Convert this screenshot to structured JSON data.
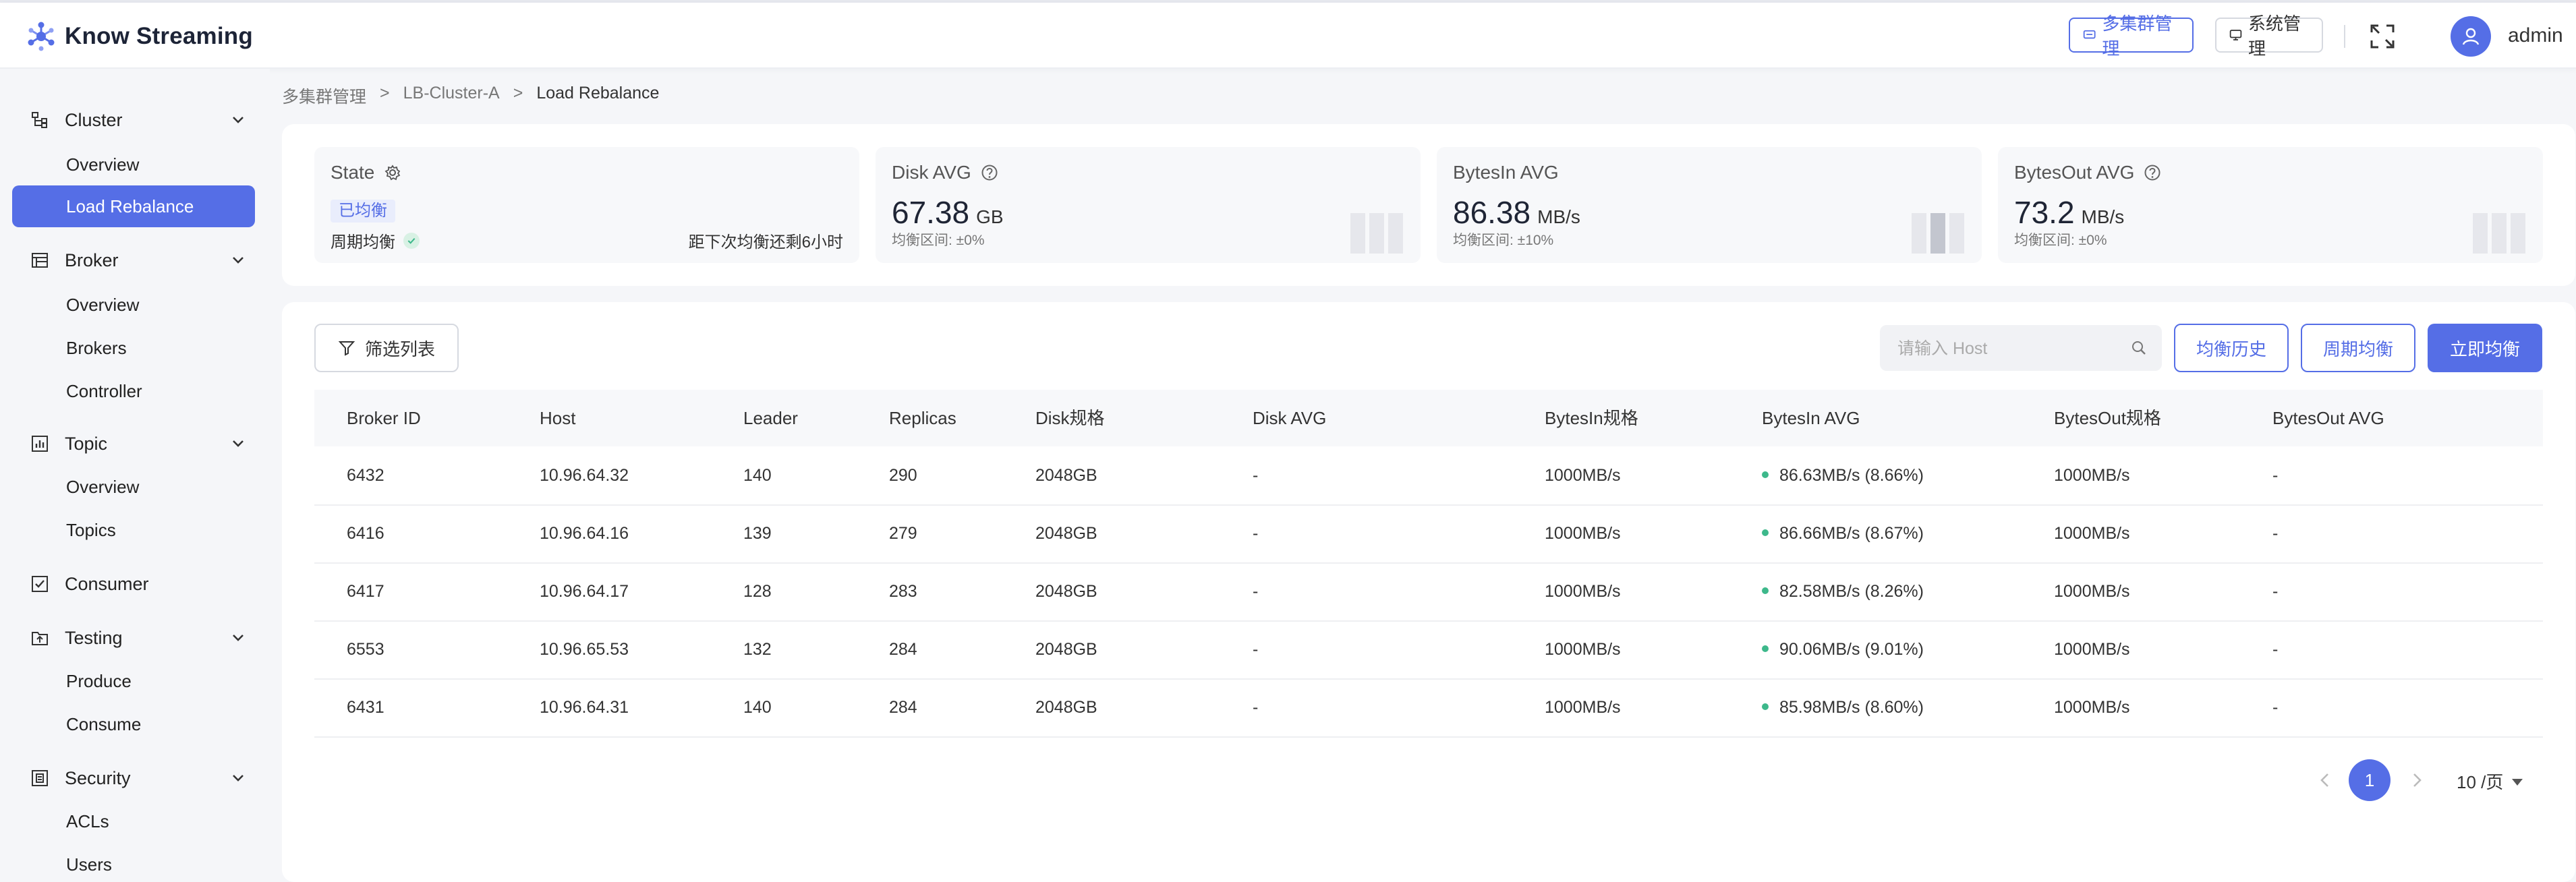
{
  "app": {
    "title": "Know Streaming",
    "user": "admin"
  },
  "header": {
    "multi_cluster": "多集群管理",
    "system": "系统管理"
  },
  "sidebar": {
    "groups": [
      {
        "label": "Cluster",
        "icon": "cluster-icon",
        "items": [
          "Overview",
          "Load Rebalance"
        ]
      },
      {
        "label": "Broker",
        "icon": "broker-icon",
        "items": [
          "Overview",
          "Brokers",
          "Controller"
        ]
      },
      {
        "label": "Topic",
        "icon": "topic-icon",
        "items": [
          "Overview",
          "Topics"
        ]
      },
      {
        "label": "Consumer",
        "icon": "consumer-icon",
        "items": []
      },
      {
        "label": "Testing",
        "icon": "testing-icon",
        "items": [
          "Produce",
          "Consume"
        ]
      },
      {
        "label": "Security",
        "icon": "security-icon",
        "items": [
          "ACLs",
          "Users"
        ]
      }
    ],
    "active": "Load Rebalance"
  },
  "breadcrumb": {
    "items": [
      "多集群管理",
      ">",
      "LB-Cluster-A",
      ">"
    ],
    "current": "Load Rebalance"
  },
  "stats": {
    "state": {
      "title": "State",
      "badge": "已均衡",
      "mode": "周期均衡",
      "next": "距下次均衡还剩6小时"
    },
    "disk": {
      "title": "Disk AVG",
      "value": "67.38",
      "unit": "GB",
      "range": "均衡区间: ±0%"
    },
    "bytes_in": {
      "title": "BytesIn AVG",
      "value": "86.38",
      "unit": "MB/s",
      "range": "均衡区间: ±10%"
    },
    "bytes_out": {
      "title": "BytesOut AVG",
      "value": "73.2",
      "unit": "MB/s",
      "range": "均衡区间: ±0%"
    }
  },
  "toolbar": {
    "filter": "筛选列表",
    "search_placeholder": "请输入 Host",
    "history": "均衡历史",
    "periodic": "周期均衡",
    "now": "立即均衡"
  },
  "table": {
    "columns": [
      "Broker ID",
      "Host",
      "Leader",
      "Replicas",
      "Disk规格",
      "Disk AVG",
      "BytesIn规格",
      "BytesIn AVG",
      "BytesOut规格",
      "BytesOut AVG"
    ],
    "rows": [
      [
        "6432",
        "10.96.64.32",
        "140",
        "290",
        "2048GB",
        "-",
        "1000MB/s",
        "86.63MB/s (8.66%)",
        "1000MB/s",
        "-"
      ],
      [
        "6416",
        "10.96.64.16",
        "139",
        "279",
        "2048GB",
        "-",
        "1000MB/s",
        "86.66MB/s (8.67%)",
        "1000MB/s",
        "-"
      ],
      [
        "6417",
        "10.96.64.17",
        "128",
        "283",
        "2048GB",
        "-",
        "1000MB/s",
        "82.58MB/s (8.26%)",
        "1000MB/s",
        "-"
      ],
      [
        "6553",
        "10.96.65.53",
        "132",
        "284",
        "2048GB",
        "-",
        "1000MB/s",
        "90.06MB/s (9.01%)",
        "1000MB/s",
        "-"
      ],
      [
        "6431",
        "10.96.64.31",
        "140",
        "284",
        "2048GB",
        "-",
        "1000MB/s",
        "85.98MB/s (8.60%)",
        "1000MB/s",
        "-"
      ]
    ]
  },
  "pagination": {
    "current": "1",
    "page_size": "10 /页"
  },
  "colors": {
    "primary": "#556ee6",
    "success": "#3db88b"
  }
}
